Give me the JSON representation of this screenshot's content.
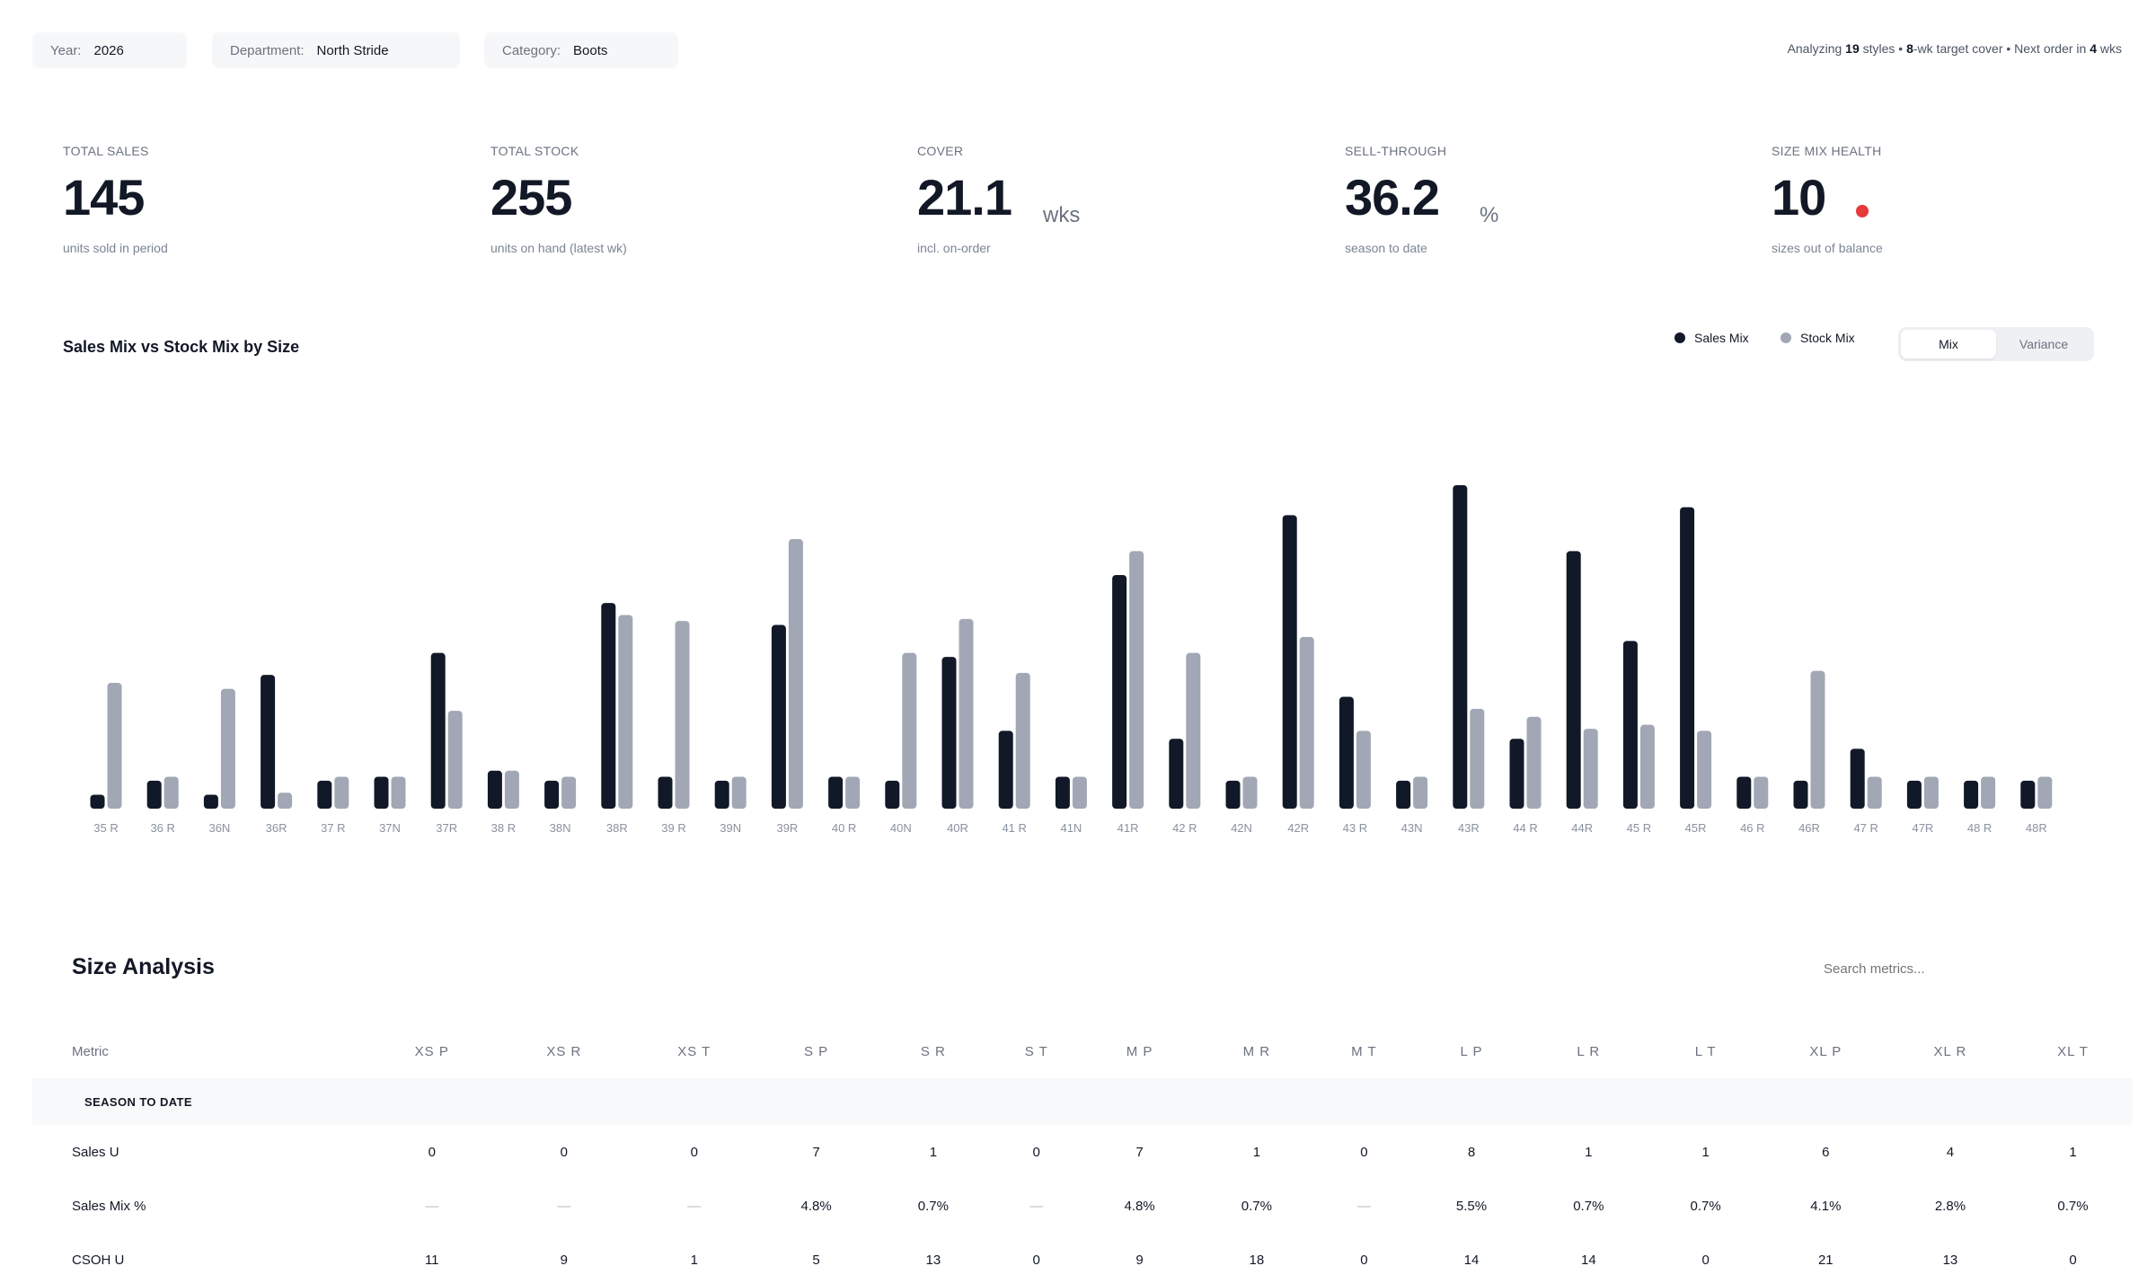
{
  "filters": {
    "year": {
      "label": "Year:",
      "value": "2026"
    },
    "department": {
      "label": "Department:",
      "value": "North Stride"
    },
    "category": {
      "label": "Category:",
      "value": "Boots"
    }
  },
  "summary": {
    "prefix": "Analyzing ",
    "styles": "19",
    "styles_suffix": " styles • ",
    "cover": "8",
    "cover_suffix": "-wk target cover • Next order in ",
    "next_order": "4",
    "next_order_suffix": " wks"
  },
  "kpis": [
    {
      "label": "TOTAL SALES",
      "value": "145",
      "unit": "",
      "sub": "units sold in period"
    },
    {
      "label": "TOTAL STOCK",
      "value": "255",
      "unit": "",
      "sub": "units on hand (latest wk)"
    },
    {
      "label": "COVER",
      "value": "21.1",
      "unit": "wks",
      "sub": "incl. on-order"
    },
    {
      "label": "SELL-THROUGH",
      "value": "36.2",
      "unit": "%",
      "sub": "season to date"
    },
    {
      "label": "SIZE MIX HEALTH",
      "value": "10",
      "unit": "",
      "sub": "sizes out of balance",
      "status_color": "#e5393b"
    }
  ],
  "chart_section": {
    "title": "Sales Mix vs Stock Mix by Size",
    "legend": [
      {
        "label": "Sales Mix",
        "color": "#111827"
      },
      {
        "label": "Stock Mix",
        "color": "#a1a7b4"
      }
    ],
    "toggle": {
      "options": [
        "Mix",
        "Variance"
      ],
      "active": "Mix"
    }
  },
  "chart_data": {
    "type": "bar",
    "title": "Sales Mix vs Stock Mix by Size",
    "categories": [
      "35 R",
      "36 R",
      "36N",
      "36R",
      "37 R",
      "37N",
      "37R",
      "38 R",
      "38N",
      "38R",
      "39 R",
      "39N",
      "39R",
      "40 R",
      "40N",
      "40R",
      "41 R",
      "41N",
      "41R",
      "42 R",
      "42N",
      "42R",
      "43 R",
      "43N",
      "43R",
      "44 R",
      "44R",
      "45 R",
      "45R",
      "46 R",
      "46R",
      "47 R",
      "47R",
      "48 R",
      "48R"
    ],
    "series": [
      {
        "name": "Sales Mix",
        "color": "#111827",
        "values": [
          0.7,
          1.4,
          0.7,
          6.7,
          1.4,
          1.6,
          7.8,
          1.9,
          1.4,
          10.3,
          1.6,
          1.4,
          9.2,
          1.6,
          1.4,
          7.6,
          3.9,
          1.6,
          11.7,
          3.5,
          1.4,
          14.7,
          5.6,
          1.4,
          16.2,
          3.5,
          12.9,
          8.4,
          15.1,
          1.6,
          1.4,
          3.0,
          1.4,
          1.4,
          1.4
        ]
      },
      {
        "name": "Stock Mix",
        "color": "#a1a7b4",
        "values": [
          6.3,
          1.6,
          6.0,
          0.8,
          1.6,
          1.6,
          4.9,
          1.9,
          1.6,
          9.7,
          9.4,
          1.6,
          13.5,
          1.6,
          7.8,
          9.5,
          6.8,
          1.6,
          12.9,
          7.8,
          1.6,
          8.6,
          3.9,
          1.6,
          5.0,
          4.6,
          4.0,
          4.2,
          3.9,
          1.6,
          6.9,
          1.6,
          1.6,
          1.6,
          1.6
        ]
      }
    ],
    "ylim": [
      0,
      18
    ]
  },
  "table": {
    "title": "Size Analysis",
    "search_placeholder": "Search metrics...",
    "headers": [
      "Metric",
      "XS P",
      "XS R",
      "XS T",
      "S P",
      "S R",
      "S T",
      "M P",
      "M R",
      "M T",
      "L P",
      "L R",
      "L T",
      "XL P",
      "XL R",
      "XL T"
    ],
    "group": "SEASON TO DATE",
    "rows": [
      {
        "metric": "Sales U",
        "cells": [
          "0",
          "0",
          "0",
          "7",
          "1",
          "0",
          "7",
          "1",
          "0",
          "8",
          "1",
          "1",
          "6",
          "4",
          "1"
        ]
      },
      {
        "metric": "Sales Mix %",
        "cells": [
          "—",
          "—",
          "—",
          "4.8%",
          "0.7%",
          "—",
          "4.8%",
          "0.7%",
          "—",
          "5.5%",
          "0.7%",
          "0.7%",
          "4.1%",
          "2.8%",
          "0.7%"
        ]
      },
      {
        "metric": "CSOH U",
        "cells": [
          "11",
          "9",
          "1",
          "5",
          "13",
          "0",
          "9",
          "18",
          "0",
          "14",
          "14",
          "0",
          "21",
          "13",
          "0"
        ]
      }
    ]
  }
}
